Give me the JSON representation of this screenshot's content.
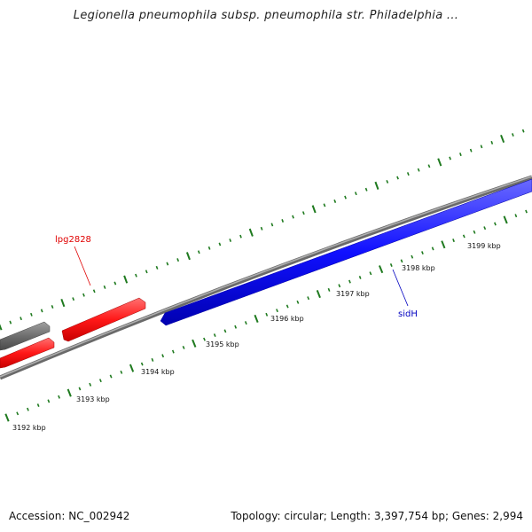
{
  "title": "Legionella pneumophila subsp. pneumophila str. Philadelphia ...",
  "footer": {
    "accession": "Accession: NC_002942",
    "summary": "Topology: circular; Length: 3,397,754 bp; Genes: 2,994"
  },
  "colors": {
    "tick": "#1f7a1f",
    "backbone": "#8a8a8a",
    "gene_red": "#ff2020",
    "gene_blue": "#1010ff",
    "gene_gray": "#707070",
    "label_red": "#e00000",
    "label_blue": "#0000c0"
  },
  "scale": {
    "unit": "kbp",
    "tick_labels": [
      "3192 kbp",
      "3193 kbp",
      "3194 kbp",
      "3195 kbp",
      "3196 kbp",
      "3197 kbp",
      "3198 kbp",
      "3199 kbp"
    ]
  },
  "features": [
    {
      "name": "lpg2828",
      "strand": "forward",
      "color": "red",
      "labeled": true
    },
    {
      "name": "sidH",
      "strand": "reverse",
      "color": "blue",
      "labeled": true
    },
    {
      "name": "",
      "strand": "forward",
      "color": "gray",
      "labeled": false
    },
    {
      "name": "",
      "strand": "forward",
      "color": "red",
      "labeled": false
    }
  ]
}
